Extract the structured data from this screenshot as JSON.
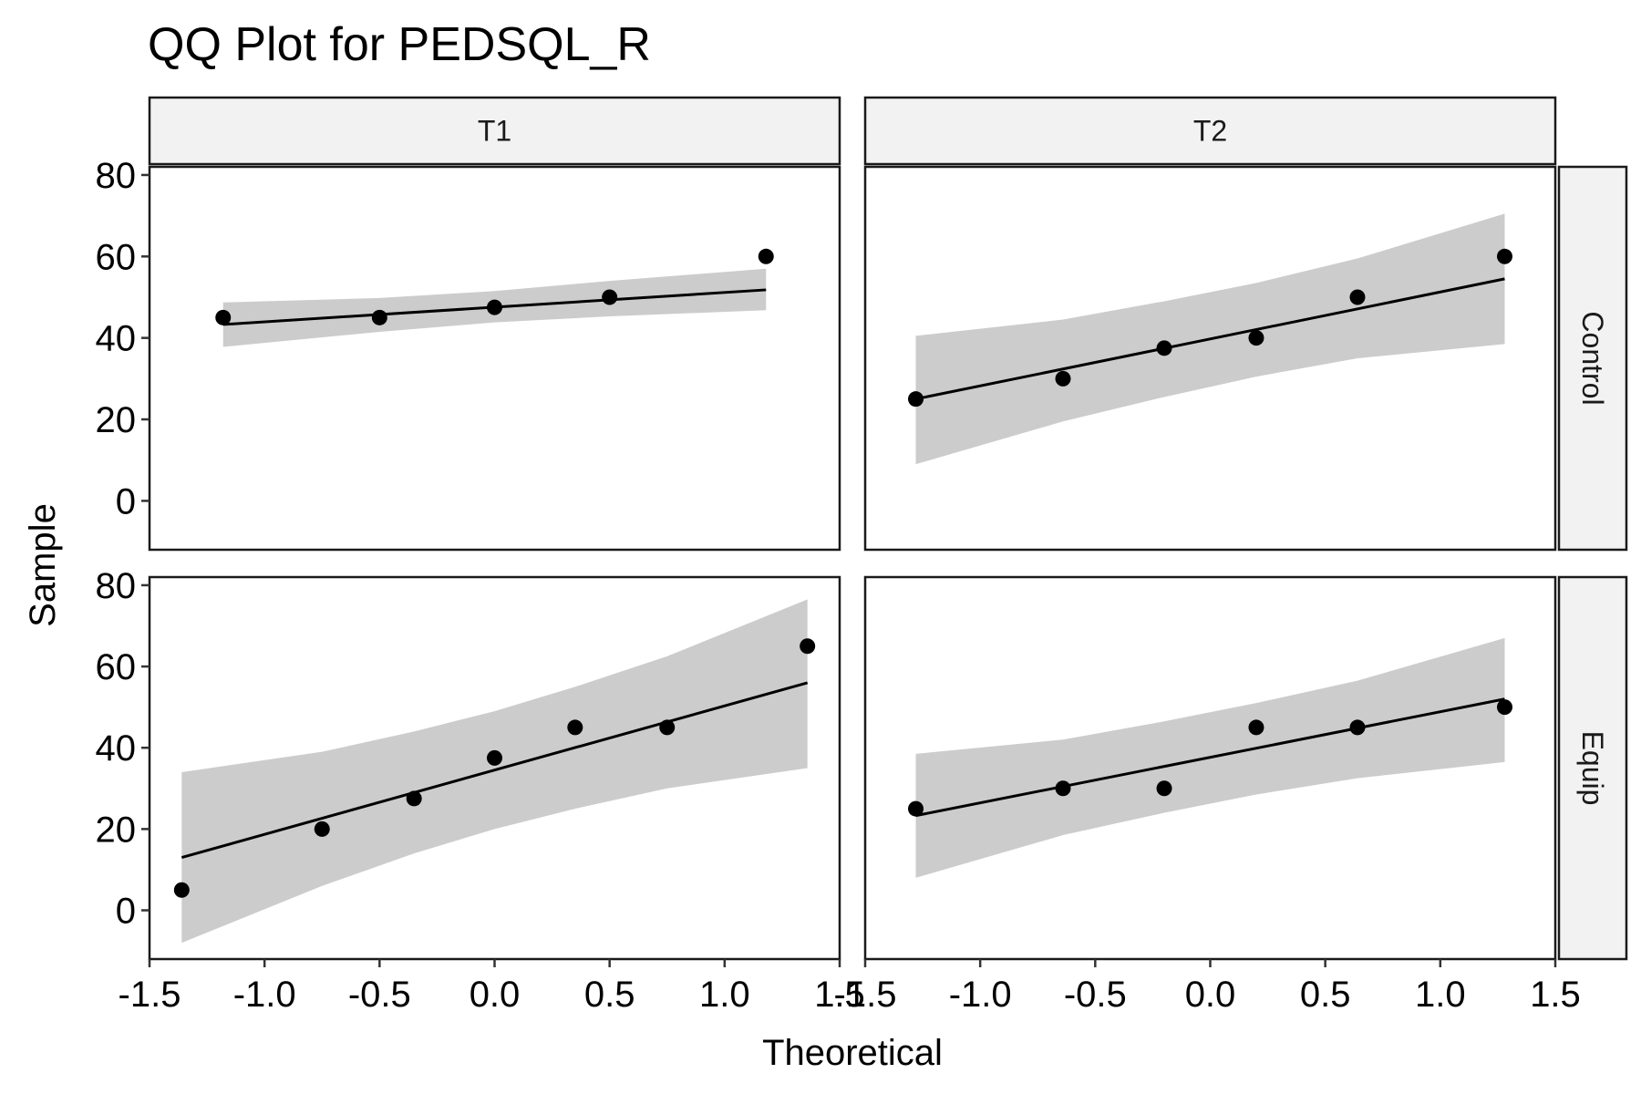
{
  "chart_data": {
    "type": "scatter",
    "title": "QQ Plot for PEDSQL_R",
    "xlabel": "Theoretical",
    "ylabel": "Sample",
    "xlim": [
      -1.5,
      1.5
    ],
    "ylim": [
      -12,
      82
    ],
    "x_ticks": [
      -1.5,
      -1.0,
      -0.5,
      0.0,
      0.5,
      1.0,
      1.5
    ],
    "x_tick_labels": [
      "-1.5",
      "-1.0",
      "-0.5",
      "0.0",
      "0.5",
      "1.0",
      "1.5"
    ],
    "y_ticks": [
      0,
      20,
      40,
      60,
      80
    ],
    "y_tick_labels": [
      "0",
      "20",
      "40",
      "60",
      "80"
    ],
    "col_facets": [
      "T1",
      "T2"
    ],
    "row_facets": [
      "Control",
      "Equip"
    ],
    "colors": {
      "point": "#000000",
      "line": "#000000",
      "band": "#cccccc",
      "strip_fill": "#f2f2f2",
      "strip_border": "#1a1a1a",
      "panel_border": "#1a1a1a"
    },
    "panels": [
      {
        "col": "T1",
        "row": "Control",
        "points": [
          [
            -1.18,
            45
          ],
          [
            -0.5,
            45
          ],
          [
            0.0,
            47.5
          ],
          [
            0.5,
            50
          ],
          [
            1.18,
            60
          ]
        ],
        "line": [
          [
            -1.18,
            43.3
          ],
          [
            1.18,
            51.8
          ]
        ],
        "band": [
          [
            -1.18,
            37.8,
            48.7
          ],
          [
            -0.5,
            41.5,
            49.8
          ],
          [
            0.0,
            43.8,
            51.5
          ],
          [
            0.5,
            45.3,
            54.0
          ],
          [
            1.18,
            46.8,
            57.0
          ]
        ]
      },
      {
        "col": "T2",
        "row": "Control",
        "points": [
          [
            -1.28,
            25
          ],
          [
            -0.64,
            30
          ],
          [
            -0.2,
            37.5
          ],
          [
            0.2,
            40
          ],
          [
            0.64,
            50
          ],
          [
            1.28,
            60
          ]
        ],
        "line": [
          [
            -1.28,
            25.0
          ],
          [
            1.28,
            54.5
          ]
        ],
        "band": [
          [
            -1.28,
            9.0,
            40.5
          ],
          [
            -0.64,
            19.5,
            44.5
          ],
          [
            -0.2,
            25.5,
            49.0
          ],
          [
            0.2,
            30.5,
            53.5
          ],
          [
            0.64,
            35.0,
            59.5
          ],
          [
            1.28,
            38.5,
            70.5
          ]
        ]
      },
      {
        "col": "T1",
        "row": "Equip",
        "points": [
          [
            -1.36,
            5
          ],
          [
            -0.75,
            20
          ],
          [
            -0.35,
            27.5
          ],
          [
            0.0,
            37.5
          ],
          [
            0.35,
            45
          ],
          [
            0.75,
            45
          ],
          [
            1.36,
            65
          ]
        ],
        "line": [
          [
            -1.36,
            13.0
          ],
          [
            1.36,
            56.0
          ]
        ],
        "band": [
          [
            -1.36,
            -8.0,
            34.0
          ],
          [
            -0.75,
            6.0,
            39.0
          ],
          [
            -0.35,
            14.0,
            44.0
          ],
          [
            0.0,
            20.0,
            49.0
          ],
          [
            0.35,
            25.0,
            55.0
          ],
          [
            0.75,
            30.0,
            62.5
          ],
          [
            1.36,
            35.0,
            76.5
          ]
        ]
      },
      {
        "col": "T2",
        "row": "Equip",
        "points": [
          [
            -1.28,
            25
          ],
          [
            -0.64,
            30
          ],
          [
            -0.2,
            30
          ],
          [
            0.2,
            45
          ],
          [
            0.64,
            45
          ],
          [
            1.28,
            50
          ]
        ],
        "line": [
          [
            -1.28,
            23.3
          ],
          [
            1.28,
            52.0
          ]
        ],
        "band": [
          [
            -1.28,
            8.0,
            38.5
          ],
          [
            -0.64,
            18.5,
            42.0
          ],
          [
            -0.2,
            24.0,
            46.5
          ],
          [
            0.2,
            28.5,
            51.0
          ],
          [
            0.64,
            32.5,
            56.5
          ],
          [
            1.28,
            36.5,
            67.0
          ]
        ]
      }
    ]
  }
}
